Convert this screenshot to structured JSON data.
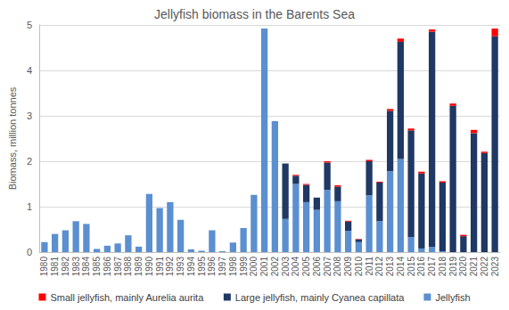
{
  "chart_data": {
    "type": "bar",
    "title": "Jellyfish biomass in the Barents Sea",
    "y_label": "Biomass, million tonnes",
    "categories": [
      "1980",
      "1981",
      "1982",
      "1983",
      "1984",
      "1985",
      "1986",
      "1987",
      "1988",
      "1989",
      "1990",
      "1991",
      "1992",
      "1993",
      "1994",
      "1995",
      "1996",
      "1997",
      "1998",
      "1999",
      "2000",
      "2001",
      "2002",
      "2003",
      "2004",
      "2005",
      "2006",
      "2007",
      "2008",
      "2009",
      "2010",
      "2011",
      "2012",
      "2013",
      "2014",
      "2015",
      "2016",
      "2017",
      "2018",
      "2019",
      "2020",
      "2021",
      "2022",
      "2023"
    ],
    "series": [
      {
        "name": "Small jellyfish, mainly Aurelia aurita",
        "color": "#ff0000",
        "values": [
          null,
          null,
          null,
          null,
          null,
          null,
          null,
          null,
          null,
          null,
          null,
          null,
          null,
          null,
          null,
          null,
          null,
          null,
          null,
          null,
          null,
          null,
          null,
          0,
          0.02,
          0.02,
          0,
          0.03,
          0.03,
          0.02,
          0.01,
          0.03,
          0.02,
          0.04,
          0.07,
          0.04,
          0.04,
          0.05,
          0.03,
          0.05,
          0.03,
          0.07,
          0.03,
          0.17
        ]
      },
      {
        "name": "Large jellyfish, mainly Cyanea capillata",
        "color": "#1f3864",
        "values": [
          null,
          null,
          null,
          null,
          null,
          null,
          null,
          null,
          null,
          null,
          null,
          null,
          null,
          null,
          null,
          null,
          null,
          null,
          null,
          null,
          null,
          null,
          null,
          1.22,
          0.18,
          0.38,
          0.27,
          0.6,
          0.32,
          0.2,
          0.06,
          0.75,
          0.85,
          1.33,
          2.58,
          2.35,
          1.65,
          4.73,
          1.51,
          3.22,
          0.35,
          2.62,
          2.18,
          4.75
        ]
      },
      {
        "name": "Jellyfish",
        "color": "#5b8fd0",
        "values": [
          0.22,
          0.4,
          0.48,
          0.68,
          0.62,
          0.07,
          0.14,
          0.19,
          0.37,
          0.12,
          1.28,
          0.97,
          1.1,
          0.71,
          0.06,
          0.03,
          0.48,
          0.02,
          0.21,
          0.53,
          1.26,
          4.92,
          2.88,
          0.73,
          1.5,
          1.1,
          0.93,
          1.37,
          1.12,
          0.47,
          0.22,
          1.25,
          0.68,
          1.78,
          2.05,
          0.33,
          0.08,
          0.12,
          0.02,
          null,
          null,
          null,
          null,
          null
        ]
      }
    ],
    "stacked": true,
    "ylim": [
      0,
      5
    ],
    "yticks": [
      0,
      1,
      2,
      3,
      4,
      5
    ],
    "grid": true,
    "legend": "bottom"
  }
}
